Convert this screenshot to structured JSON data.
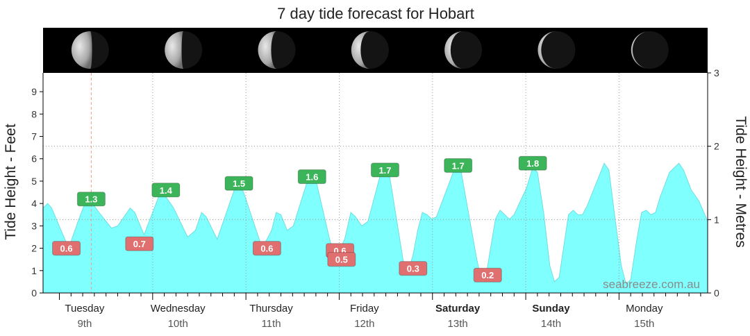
{
  "chart_data": {
    "type": "area",
    "title": "7 day tide forecast for Hobart",
    "ylabel_left": "Tide Height - Feet",
    "ylabel_right": "Tide Height - Metres",
    "ylim_feet": [
      0,
      9.84
    ],
    "ylim_metres": [
      0,
      3
    ],
    "y_ticks_feet": [
      "0",
      "1",
      "2",
      "3",
      "4",
      "5",
      "6",
      "7",
      "8",
      "9"
    ],
    "y_ticks_metres": [
      "0",
      "1",
      "2",
      "3"
    ],
    "x_range_hours": [
      -4.2,
      166.8
    ],
    "days": [
      {
        "name": "Tuesday",
        "date": "9th",
        "bold": false
      },
      {
        "name": "Wednesday",
        "date": "10th",
        "bold": false
      },
      {
        "name": "Thursday",
        "date": "11th",
        "bold": false
      },
      {
        "name": "Friday",
        "date": "12th",
        "bold": false
      },
      {
        "name": "Saturday",
        "date": "13th",
        "bold": true
      },
      {
        "name": "Sunday",
        "date": "14th",
        "bold": true
      },
      {
        "name": "Monday",
        "date": "15th",
        "bold": false
      }
    ],
    "tide_curve_feet": [
      [
        -4.2,
        3.8
      ],
      [
        -3.0,
        4.0
      ],
      [
        -2.0,
        3.8
      ],
      [
        2.4,
        2.0
      ],
      [
        4.8,
        3.2
      ],
      [
        7.2,
        4.3
      ],
      [
        10.2,
        3.6
      ],
      [
        13.4,
        2.9
      ],
      [
        15.0,
        3.0
      ],
      [
        18.2,
        3.8
      ],
      [
        19.4,
        3.6
      ],
      [
        21.8,
        2.6
      ],
      [
        26.2,
        4.6
      ],
      [
        29.4,
        3.8
      ],
      [
        33.0,
        2.5
      ],
      [
        35.0,
        2.8
      ],
      [
        36.6,
        3.6
      ],
      [
        37.8,
        3.4
      ],
      [
        40.6,
        2.4
      ],
      [
        45.0,
        4.6
      ],
      [
        46.2,
        4.8
      ],
      [
        47.4,
        4.5
      ],
      [
        52.2,
        2.0
      ],
      [
        54.6,
        2.8
      ],
      [
        55.8,
        3.6
      ],
      [
        57.0,
        3.5
      ],
      [
        58.6,
        2.8
      ],
      [
        60.2,
        3.0
      ],
      [
        63.8,
        5.0
      ],
      [
        65.0,
        5.2
      ],
      [
        66.2,
        4.9
      ],
      [
        69.4,
        2.5
      ],
      [
        70.2,
        2.0
      ],
      [
        71.0,
        1.5
      ],
      [
        73.4,
        2.4
      ],
      [
        75.0,
        3.6
      ],
      [
        76.2,
        3.4
      ],
      [
        77.8,
        3.0
      ],
      [
        79.4,
        3.2
      ],
      [
        82.6,
        5.3
      ],
      [
        83.8,
        5.5
      ],
      [
        85.0,
        5.2
      ],
      [
        87.4,
        2.6
      ],
      [
        88.6,
        1.3
      ],
      [
        89.8,
        1.0
      ],
      [
        91.0,
        1.7
      ],
      [
        92.2,
        2.8
      ],
      [
        93.4,
        3.6
      ],
      [
        94.6,
        3.5
      ],
      [
        95.8,
        3.3
      ],
      [
        97.0,
        3.4
      ],
      [
        101.8,
        5.6
      ],
      [
        103.4,
        5.4
      ],
      [
        107.4,
        1.5
      ],
      [
        108.6,
        0.6
      ],
      [
        109.8,
        0.8
      ],
      [
        112.2,
        3.3
      ],
      [
        113.4,
        3.7
      ],
      [
        114.6,
        3.5
      ],
      [
        115.8,
        3.3
      ],
      [
        117.0,
        3.5
      ],
      [
        120.2,
        4.7
      ],
      [
        121.8,
        5.6
      ],
      [
        123.0,
        5.4
      ],
      [
        124.6,
        3.6
      ],
      [
        126.2,
        1.2
      ],
      [
        127.4,
        0.5
      ],
      [
        128.6,
        0.7
      ],
      [
        131.0,
        3.5
      ],
      [
        132.2,
        3.7
      ],
      [
        133.4,
        3.5
      ],
      [
        134.6,
        3.5
      ],
      [
        135.8,
        3.9
      ],
      [
        140.2,
        5.8
      ],
      [
        141.4,
        5.5
      ],
      [
        143.0,
        3.3
      ],
      [
        144.6,
        1.2
      ],
      [
        145.8,
        0.4
      ],
      [
        147.0,
        0.6
      ],
      [
        148.6,
        2.4
      ],
      [
        149.8,
        3.6
      ],
      [
        151.0,
        3.7
      ],
      [
        152.2,
        3.5
      ],
      [
        153.4,
        3.6
      ],
      [
        154.6,
        4.3
      ],
      [
        157.0,
        5.4
      ],
      [
        159.4,
        5.8
      ],
      [
        160.6,
        5.5
      ],
      [
        162.6,
        4.6
      ],
      [
        164.6,
        4.1
      ],
      [
        166.8,
        3.2
      ]
    ],
    "tide_labels": [
      {
        "text": "0.6",
        "hour": 1.8,
        "ft": 2.0,
        "type": "low"
      },
      {
        "text": "1.3",
        "hour": 8.2,
        "ft": 4.2,
        "type": "high"
      },
      {
        "text": "0.7",
        "hour": 20.6,
        "ft": 2.2,
        "type": "low"
      },
      {
        "text": "1.4",
        "hour": 27.4,
        "ft": 4.6,
        "type": "high"
      },
      {
        "text": "1.5",
        "hour": 46.2,
        "ft": 4.9,
        "type": "high"
      },
      {
        "text": "0.6",
        "hour": 53.4,
        "ft": 2.0,
        "type": "low"
      },
      {
        "text": "1.6",
        "hour": 65.0,
        "ft": 5.2,
        "type": "high"
      },
      {
        "text": "0.6",
        "hour": 72.2,
        "ft": 1.9,
        "type": "low"
      },
      {
        "text": "0.5",
        "hour": 72.6,
        "ft": 1.5,
        "type": "low"
      },
      {
        "text": "1.7",
        "hour": 83.8,
        "ft": 5.5,
        "type": "high"
      },
      {
        "text": "0.3",
        "hour": 91.0,
        "ft": 1.1,
        "type": "low"
      },
      {
        "text": "1.7",
        "hour": 102.6,
        "ft": 5.7,
        "type": "high"
      },
      {
        "text": "0.2",
        "hour": 110.2,
        "ft": 0.8,
        "type": "low"
      },
      {
        "text": "1.8",
        "hour": 121.8,
        "ft": 5.8,
        "type": "high"
      }
    ],
    "grid": true,
    "colors": {
      "fill": "#80ffff",
      "line": "#6fdede",
      "high_badge": "#3cb55a",
      "low_badge": "#e07070",
      "now_line": "#f0a080"
    },
    "now_hour": 8.2,
    "moon_phases": [
      {
        "illum": 0.55,
        "waning": true
      },
      {
        "illum": 0.45,
        "waning": true
      },
      {
        "illum": 0.35,
        "waning": true
      },
      {
        "illum": 0.25,
        "waning": true
      },
      {
        "illum": 0.16,
        "waning": true
      },
      {
        "illum": 0.09,
        "waning": true
      },
      {
        "illum": 0.04,
        "waning": true
      }
    ]
  },
  "watermark": "seabreeze.com.au"
}
